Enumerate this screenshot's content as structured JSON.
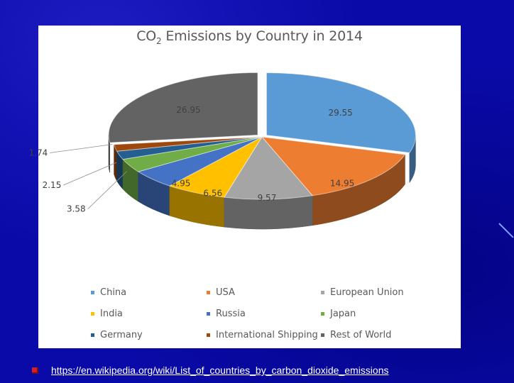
{
  "slide": {
    "footer_link": "https://en.wikipedia.org/wiki/List_of_countries_by_carbon_dioxide_emissions"
  },
  "chart_data": {
    "type": "pie",
    "style": "3d-exploded",
    "title_main": "CO",
    "title_sub": "2",
    "title_rest": " Emissions by Country in 2014",
    "legend_position": "bottom",
    "slices": [
      {
        "name": "China",
        "value": 29.55,
        "label": "29.55",
        "color": "#5b9bd5"
      },
      {
        "name": "USA",
        "value": 14.95,
        "label": "14.95",
        "color": "#ed7d31"
      },
      {
        "name": "European Union",
        "value": 9.57,
        "label": "9.57",
        "color": "#a5a5a5"
      },
      {
        "name": "India",
        "value": 6.56,
        "label": "6.56",
        "color": "#ffc000"
      },
      {
        "name": "Russia",
        "value": 4.95,
        "label": "4.95",
        "color": "#4472c4"
      },
      {
        "name": "Japan",
        "value": 3.58,
        "label": "3.58",
        "color": "#70ad47"
      },
      {
        "name": "Germany",
        "value": 2.15,
        "label": "2.15",
        "color": "#255e91"
      },
      {
        "name": "International Shipping",
        "value": 1.74,
        "label": "1.74",
        "color": "#9e480e"
      },
      {
        "name": "Rest of World",
        "value": 26.95,
        "label": "26.95",
        "color": "#636363"
      }
    ]
  }
}
